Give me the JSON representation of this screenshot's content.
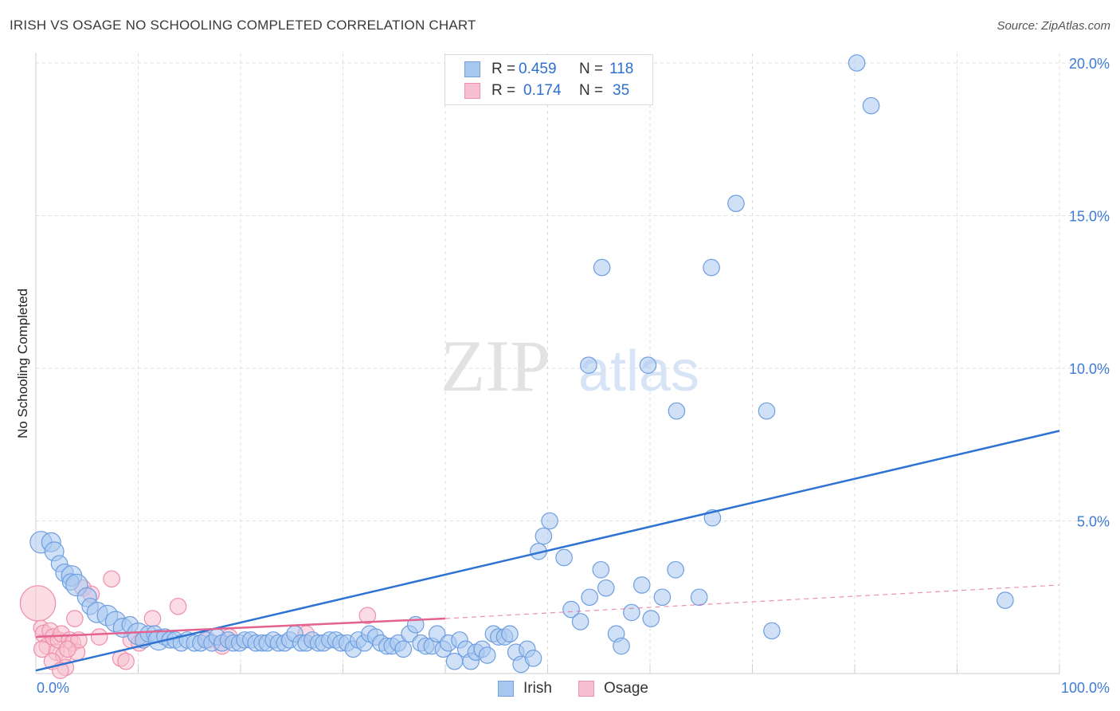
{
  "title": "IRISH VS OSAGE NO SCHOOLING COMPLETED CORRELATION CHART",
  "source": "Source: ZipAtlas.com",
  "watermark": {
    "part1": "ZIP",
    "part2": "atlas"
  },
  "colors": {
    "irish_fill": "#a9c8f0",
    "irish_stroke": "#6d9ee0",
    "irish_line": "#2e72d2",
    "osage_fill": "#f7bfd0",
    "osage_stroke": "#ee8fab",
    "osage_line": "#e3628e",
    "tick_text": "#3d7bd6",
    "grid": "#dddddd"
  },
  "legend": {
    "rows": [
      {
        "series": "Irish",
        "r_label": "R =",
        "r_value": "0.459",
        "n_label": "N =",
        "n_value": "118"
      },
      {
        "series": "Osage",
        "r_label": "R =",
        "r_value": "0.174",
        "n_label": "N =",
        "n_value": "35"
      }
    ]
  },
  "bottom_legend": [
    "Irish",
    "Osage"
  ],
  "chart_data": {
    "type": "scatter",
    "title": "IRISH VS OSAGE NO SCHOOLING COMPLETED CORRELATION CHART",
    "xlabel": "",
    "ylabel": "No Schooling Completed",
    "xlim": [
      0,
      100
    ],
    "ylim": [
      0,
      20.5
    ],
    "x_tick_labels": [
      "0.0%",
      "100.0%"
    ],
    "y_ticks": [
      5,
      10,
      15,
      20
    ],
    "y_tick_labels": [
      "5.0%",
      "10.0%",
      "15.0%",
      "20.0%"
    ],
    "grid": true,
    "legend_position": "top-center",
    "series": [
      {
        "name": "Irish",
        "regression": {
          "x": [
            0,
            100
          ],
          "y": [
            0.1,
            7.95
          ]
        },
        "points": [
          [
            0.5,
            4.3,
            1.6
          ],
          [
            1.5,
            4.3,
            1.4
          ],
          [
            1.8,
            4.0,
            1.4
          ],
          [
            2.3,
            3.6,
            1.2
          ],
          [
            2.8,
            3.3,
            1.3
          ],
          [
            3.5,
            3.2,
            1.5
          ],
          [
            3.4,
            3.0,
            1.2
          ],
          [
            4.0,
            2.9,
            1.6
          ],
          [
            5.0,
            2.5,
            1.4
          ],
          [
            5.3,
            2.2,
            1.2
          ],
          [
            6.0,
            2.0,
            1.5
          ],
          [
            7.0,
            1.9,
            1.5
          ],
          [
            7.8,
            1.7,
            1.5
          ],
          [
            8.5,
            1.5,
            1.4
          ],
          [
            9.2,
            1.6,
            1.2
          ],
          [
            10.0,
            1.3,
            1.6
          ],
          [
            10.5,
            1.1,
            1.2
          ],
          [
            11.0,
            1.3,
            1.2
          ],
          [
            11.6,
            1.3,
            1.2
          ],
          [
            12.0,
            1.1,
            1.5
          ],
          [
            12.6,
            1.2,
            1.2
          ],
          [
            13.1,
            1.1,
            1.2
          ],
          [
            13.6,
            1.1,
            1.2
          ],
          [
            14.2,
            1.0,
            1.2
          ],
          [
            14.8,
            1.1,
            1.2
          ],
          [
            15.5,
            1.0,
            1.2
          ],
          [
            16.1,
            1.0,
            1.2
          ],
          [
            16.6,
            1.1,
            1.2
          ],
          [
            17.2,
            1.0,
            1.2
          ],
          [
            17.7,
            1.2,
            1.2
          ],
          [
            18.2,
            1.0,
            1.2
          ],
          [
            18.8,
            1.1,
            1.2
          ],
          [
            19.3,
            1.0,
            1.2
          ],
          [
            19.9,
            1.0,
            1.2
          ],
          [
            20.4,
            1.1,
            1.2
          ],
          [
            21.0,
            1.1,
            1.2
          ],
          [
            21.5,
            1.0,
            1.2
          ],
          [
            22.1,
            1.0,
            1.2
          ],
          [
            22.6,
            1.0,
            1.2
          ],
          [
            23.2,
            1.1,
            1.2
          ],
          [
            23.7,
            1.0,
            1.2
          ],
          [
            24.3,
            1.0,
            1.2
          ],
          [
            24.8,
            1.1,
            1.2
          ],
          [
            25.3,
            1.3,
            1.2
          ],
          [
            25.9,
            1.0,
            1.2
          ],
          [
            26.4,
            1.0,
            1.2
          ],
          [
            27.0,
            1.1,
            1.2
          ],
          [
            27.6,
            1.0,
            1.2
          ],
          [
            28.1,
            1.0,
            1.2
          ],
          [
            28.7,
            1.1,
            1.2
          ],
          [
            29.3,
            1.1,
            1.2
          ],
          [
            29.8,
            1.0,
            1.2
          ],
          [
            30.4,
            1.0,
            1.2
          ],
          [
            31.0,
            0.8,
            1.2
          ],
          [
            31.5,
            1.1,
            1.2
          ],
          [
            32.1,
            1.0,
            1.2
          ],
          [
            32.6,
            1.3,
            1.2
          ],
          [
            33.2,
            1.2,
            1.2
          ],
          [
            33.7,
            1.0,
            1.2
          ],
          [
            34.3,
            0.9,
            1.2
          ],
          [
            34.8,
            0.9,
            1.2
          ],
          [
            35.4,
            1.0,
            1.2
          ],
          [
            35.9,
            0.8,
            1.2
          ],
          [
            36.5,
            1.3,
            1.2
          ],
          [
            37.1,
            1.6,
            1.2
          ],
          [
            37.6,
            1.0,
            1.2
          ],
          [
            38.1,
            0.9,
            1.2
          ],
          [
            38.7,
            0.9,
            1.2
          ],
          [
            39.2,
            1.3,
            1.2
          ],
          [
            39.8,
            0.8,
            1.2
          ],
          [
            40.3,
            1.0,
            1.2
          ],
          [
            40.9,
            0.4,
            1.2
          ],
          [
            41.4,
            1.1,
            1.2
          ],
          [
            42.0,
            0.8,
            1.2
          ],
          [
            42.5,
            0.4,
            1.2
          ],
          [
            43.0,
            0.7,
            1.2
          ],
          [
            43.6,
            0.8,
            1.2
          ],
          [
            44.1,
            0.6,
            1.2
          ],
          [
            44.7,
            1.3,
            1.2
          ],
          [
            45.2,
            1.2,
            1.2
          ],
          [
            45.8,
            1.2,
            1.2
          ],
          [
            46.3,
            1.3,
            1.2
          ],
          [
            46.9,
            0.7,
            1.2
          ],
          [
            47.4,
            0.3,
            1.2
          ],
          [
            48.0,
            0.8,
            1.2
          ],
          [
            48.6,
            0.5,
            1.2
          ],
          [
            49.1,
            4.0,
            1.2
          ],
          [
            49.6,
            4.5,
            1.2
          ],
          [
            50.2,
            5.0,
            1.2
          ],
          [
            51.6,
            3.8,
            1.2
          ],
          [
            52.3,
            2.1,
            1.2
          ],
          [
            53.2,
            1.7,
            1.2
          ],
          [
            54.1,
            2.5,
            1.2
          ],
          [
            55.2,
            3.4,
            1.2
          ],
          [
            55.7,
            2.8,
            1.2
          ],
          [
            56.7,
            1.3,
            1.2
          ],
          [
            57.2,
            0.9,
            1.2
          ],
          [
            58.2,
            2.0,
            1.2
          ],
          [
            59.2,
            2.9,
            1.2
          ],
          [
            60.1,
            1.8,
            1.2
          ],
          [
            61.2,
            2.5,
            1.2
          ],
          [
            62.5,
            3.4,
            1.2
          ],
          [
            64.8,
            2.5,
            1.2
          ],
          [
            66.1,
            5.1,
            1.2
          ],
          [
            54.0,
            10.1,
            1.2
          ],
          [
            59.8,
            10.1,
            1.2
          ],
          [
            62.6,
            8.6,
            1.2
          ],
          [
            71.4,
            8.6,
            1.2
          ],
          [
            55.3,
            13.3,
            1.2
          ],
          [
            66.0,
            13.3,
            1.2
          ],
          [
            68.4,
            15.4,
            1.2
          ],
          [
            80.2,
            20.0,
            1.2
          ],
          [
            81.6,
            18.6,
            1.2
          ],
          [
            71.9,
            1.4,
            1.2
          ],
          [
            94.7,
            2.4,
            1.2
          ]
        ]
      },
      {
        "name": "Osage",
        "regression": {
          "x": [
            0,
            40
          ],
          "y": [
            1.2,
            1.8
          ],
          "dashed_x": [
            40,
            100
          ],
          "dashed_y": [
            1.8,
            2.9
          ]
        },
        "points": [
          [
            0.2,
            2.3,
            2.6
          ],
          [
            0.5,
            1.5,
            1.1
          ],
          [
            0.8,
            1.3,
            1.3
          ],
          [
            1.1,
            0.9,
            1.2
          ],
          [
            1.4,
            1.4,
            1.2
          ],
          [
            1.7,
            1.2,
            1.2
          ],
          [
            2.0,
            0.7,
            1.2
          ],
          [
            2.2,
            1.1,
            1.2
          ],
          [
            2.5,
            1.3,
            1.2
          ],
          [
            2.7,
            0.6,
            1.2
          ],
          [
            2.9,
            0.2,
            1.2
          ],
          [
            3.3,
            1.1,
            1.2
          ],
          [
            3.6,
            1.0,
            1.2
          ],
          [
            3.8,
            1.8,
            1.2
          ],
          [
            4.0,
            0.7,
            1.2
          ],
          [
            4.2,
            1.1,
            1.2
          ],
          [
            4.6,
            2.8,
            1.2
          ],
          [
            5.4,
            2.6,
            1.2
          ],
          [
            7.4,
            3.1,
            1.2
          ],
          [
            8.3,
            0.5,
            1.2
          ],
          [
            8.8,
            0.4,
            1.2
          ],
          [
            9.3,
            1.1,
            1.2
          ],
          [
            11.4,
            1.8,
            1.2
          ],
          [
            13.9,
            2.2,
            1.2
          ],
          [
            18.2,
            0.9,
            1.2
          ],
          [
            18.9,
            1.2,
            1.2
          ],
          [
            26.4,
            1.3,
            1.2
          ],
          [
            32.4,
            1.9,
            1.2
          ],
          [
            0.6,
            0.8,
            1.2
          ],
          [
            1.6,
            0.4,
            1.2
          ],
          [
            2.4,
            0.1,
            1.2
          ],
          [
            3.1,
            0.8,
            1.2
          ],
          [
            10.1,
            1.0,
            1.2
          ],
          [
            16.8,
            1.1,
            1.2
          ],
          [
            6.2,
            1.2,
            1.2
          ]
        ]
      }
    ]
  }
}
